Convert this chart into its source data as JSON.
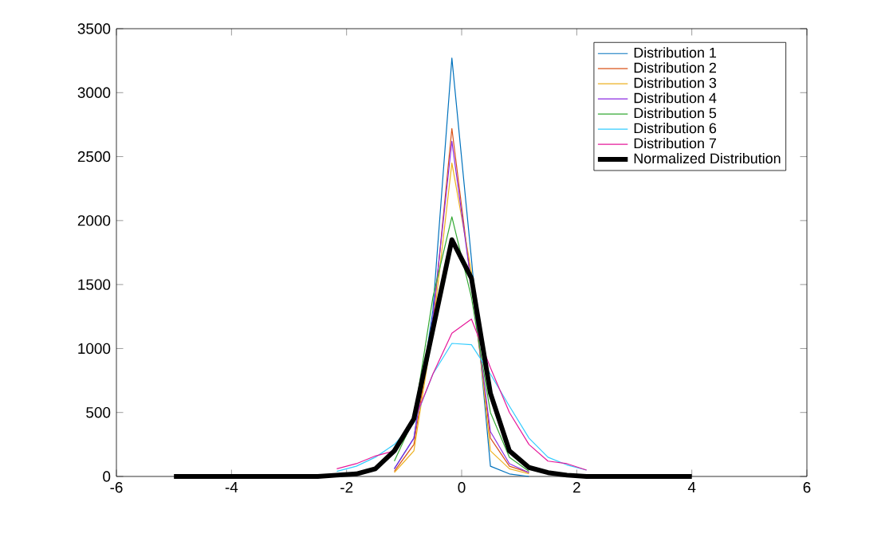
{
  "chart_data": {
    "type": "line",
    "xlim": [
      -6,
      6
    ],
    "ylim": [
      0,
      3500
    ],
    "xticks": [
      -6,
      -4,
      -2,
      0,
      2,
      4,
      6
    ],
    "yticks": [
      0,
      500,
      1000,
      1500,
      2000,
      2500,
      3000,
      3500
    ],
    "grid": false,
    "legend": "top right",
    "marker": "none",
    "line_style": "solid",
    "series": [
      {
        "name": "Distribution 1",
        "color": "#0072bd",
        "x": [
          -1.17,
          -0.83,
          -0.5,
          -0.17,
          0.17,
          0.5,
          0.83,
          1.17
        ],
        "values": [
          60,
          300,
          1300,
          3270,
          1700,
          80,
          20,
          0
        ]
      },
      {
        "name": "Distribution 2",
        "color": "#d95319",
        "x": [
          -1.17,
          -0.83,
          -0.5,
          -0.17,
          0.17,
          0.5,
          0.83,
          1.17
        ],
        "values": [
          40,
          250,
          1200,
          2720,
          1500,
          300,
          80,
          30
        ]
      },
      {
        "name": "Distribution 3",
        "color": "#edb120",
        "x": [
          -1.17,
          -0.83,
          -0.5,
          -0.17,
          0.17,
          0.5,
          0.83,
          1.17
        ],
        "values": [
          30,
          200,
          1150,
          2450,
          1600,
          200,
          60,
          20
        ]
      },
      {
        "name": "Distribution 4",
        "color": "#8b2be2",
        "x": [
          -1.17,
          -0.83,
          -0.5,
          -0.17,
          0.17,
          0.5,
          0.83,
          1.17
        ],
        "values": [
          60,
          300,
          1250,
          2620,
          1500,
          350,
          100,
          30
        ]
      },
      {
        "name": "Distribution 5",
        "color": "#33a833",
        "x": [
          -1.17,
          -0.83,
          -0.5,
          -0.17,
          0.17,
          0.5,
          0.83,
          1.17
        ],
        "values": [
          120,
          450,
          1400,
          2030,
          1400,
          500,
          150,
          40
        ]
      },
      {
        "name": "Distribution 6",
        "color": "#33ccff",
        "x": [
          -2.17,
          -1.83,
          -1.5,
          -1.17,
          -0.83,
          -0.5,
          -0.17,
          0.17,
          0.5,
          0.83,
          1.17,
          1.5,
          1.83,
          2.17
        ],
        "values": [
          40,
          80,
          150,
          250,
          420,
          800,
          1040,
          1030,
          800,
          550,
          300,
          150,
          90,
          50
        ]
      },
      {
        "name": "Distribution 7",
        "color": "#e6189a",
        "x": [
          -2.17,
          -1.83,
          -1.5,
          -1.17,
          -0.83,
          -0.5,
          -0.17,
          0.17,
          0.5,
          0.83,
          1.17,
          1.5,
          1.83,
          2.17
        ],
        "values": [
          60,
          100,
          160,
          200,
          430,
          800,
          1120,
          1230,
          850,
          500,
          250,
          120,
          100,
          50
        ]
      },
      {
        "name": "Normalized Distribution",
        "color": "#000000",
        "x": [
          -5,
          -2.5,
          -2.17,
          -1.83,
          -1.5,
          -1.17,
          -0.83,
          -0.5,
          -0.17,
          0.17,
          0.5,
          0.83,
          1.17,
          1.5,
          1.83,
          2.17,
          2.5,
          4
        ],
        "values": [
          0,
          0,
          10,
          20,
          60,
          200,
          450,
          1150,
          1850,
          1550,
          650,
          200,
          70,
          30,
          10,
          0,
          0,
          0
        ]
      }
    ]
  }
}
